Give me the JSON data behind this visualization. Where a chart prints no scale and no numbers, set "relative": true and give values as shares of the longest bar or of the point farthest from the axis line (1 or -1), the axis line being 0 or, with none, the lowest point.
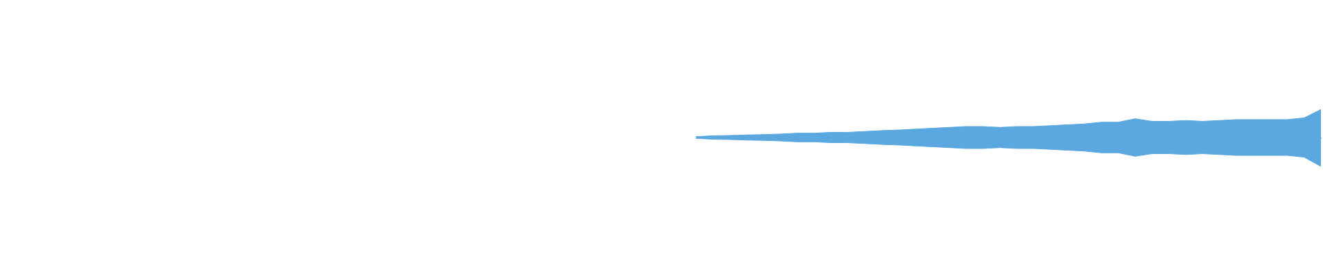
{
  "chart_data": {
    "type": "area",
    "relative": true,
    "grid": false,
    "legend": false,
    "categories": [
      null,
      null,
      null,
      null,
      null,
      null,
      null,
      null,
      null,
      null,
      null,
      null,
      null,
      null,
      null,
      null,
      null,
      null,
      null,
      null,
      null,
      null,
      null,
      null,
      null,
      null,
      null,
      null,
      null,
      null,
      null,
      null,
      null,
      null,
      null,
      null,
      null,
      null
    ],
    "series": [
      {
        "color": "#5ba8e0",
        "values": [
          0.03,
          0.06,
          0.07,
          0.09,
          0.1,
          0.12,
          0.15,
          0.15,
          0.18,
          0.18,
          0.21,
          0.24,
          0.26,
          0.29,
          0.32,
          0.35,
          0.38,
          0.38,
          0.35,
          0.38,
          0.38,
          0.41,
          0.44,
          0.47,
          0.53,
          0.53,
          0.65,
          0.56,
          0.56,
          0.59,
          0.56,
          0.59,
          0.62,
          0.62,
          0.62,
          0.62,
          0.68,
          0.97
        ]
      },
      {
        "color": "#5ba8e0",
        "values": [
          -0.03,
          -0.06,
          -0.07,
          -0.09,
          -0.1,
          -0.12,
          -0.15,
          -0.15,
          -0.18,
          -0.18,
          -0.21,
          -0.24,
          -0.26,
          -0.29,
          -0.32,
          -0.35,
          -0.38,
          -0.38,
          -0.35,
          -0.38,
          -0.38,
          -0.41,
          -0.44,
          -0.47,
          -0.53,
          -0.53,
          -0.65,
          -0.56,
          -0.56,
          -0.59,
          -0.56,
          -0.59,
          -0.62,
          -0.62,
          -0.62,
          -0.62,
          -0.68,
          -1
        ]
      }
    ]
  }
}
